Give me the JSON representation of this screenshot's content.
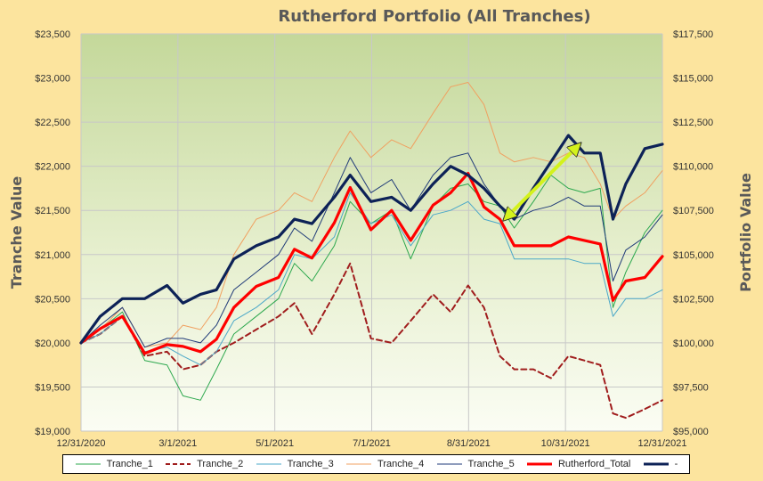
{
  "chart_data": {
    "type": "line",
    "title": "Rutherford Portfolio (All Tranches)",
    "ylabel_left": "Tranche Value",
    "ylabel_right": "Portfolio Value",
    "x_ticks": [
      "12/31/2020",
      "3/1/2021",
      "5/1/2021",
      "7/1/2021",
      "8/31/2021",
      "10/31/2021",
      "12/31/2021"
    ],
    "x_range": [
      "2020-12-31",
      "2021-12-31"
    ],
    "ylim_left": [
      19000,
      23500
    ],
    "ylim_right": [
      95000,
      117500
    ],
    "y_ticks_left": [
      "$19,000",
      "$19,500",
      "$20,000",
      "$20,500",
      "$21,000",
      "$21,500",
      "$22,000",
      "$22,500",
      "$23,000",
      "$23,500"
    ],
    "y_ticks_right": [
      "$95,000",
      "$97,500",
      "$100,000",
      "$102,500",
      "$105,000",
      "$107,500",
      "$110,000",
      "$112,500",
      "$115,000",
      "$117,500"
    ],
    "grid": true,
    "legend_position": "bottom",
    "annotation": {
      "type": "double-arrow",
      "from": [
        "2021-09-23",
        21400
      ],
      "to": [
        "2021-11-09",
        22250
      ],
      "color": "#D4F21C"
    },
    "series": [
      {
        "name": "Tranche_1",
        "axis": "left",
        "color": "#2DA84E",
        "width": 1,
        "dash": "none",
        "x": [
          "2020-12-31",
          "2021-01-12",
          "2021-01-26",
          "2021-02-09",
          "2021-02-23",
          "2021-03-05",
          "2021-03-16",
          "2021-03-26",
          "2021-04-06",
          "2021-04-20",
          "2021-05-04",
          "2021-05-14",
          "2021-05-25",
          "2021-06-08",
          "2021-06-18",
          "2021-07-01",
          "2021-07-14",
          "2021-07-26",
          "2021-08-09",
          "2021-08-20",
          "2021-08-31",
          "2021-09-10",
          "2021-09-20",
          "2021-09-29",
          "2021-10-11",
          "2021-10-22",
          "2021-11-02",
          "2021-11-12",
          "2021-11-22",
          "2021-11-30",
          "2021-12-08",
          "2021-12-20",
          "2021-12-31"
        ],
        "y": [
          20000,
          20150,
          20350,
          19800,
          19750,
          19400,
          19350,
          19700,
          20100,
          20300,
          20500,
          20900,
          20700,
          21100,
          21600,
          21350,
          21500,
          20950,
          21550,
          21750,
          21800,
          21600,
          21550,
          21300,
          21600,
          21900,
          21750,
          21700,
          21750,
          20400,
          20800,
          21250,
          21500
        ]
      },
      {
        "name": "Tranche_2",
        "axis": "left",
        "color": "#A01D1D",
        "width": 2,
        "dash": "6,4",
        "x": [
          "2020-12-31",
          "2021-01-12",
          "2021-01-26",
          "2021-02-09",
          "2021-02-23",
          "2021-03-05",
          "2021-03-16",
          "2021-03-26",
          "2021-04-06",
          "2021-04-20",
          "2021-05-04",
          "2021-05-14",
          "2021-05-25",
          "2021-06-08",
          "2021-06-18",
          "2021-07-01",
          "2021-07-14",
          "2021-07-26",
          "2021-08-09",
          "2021-08-20",
          "2021-08-31",
          "2021-09-10",
          "2021-09-20",
          "2021-09-29",
          "2021-10-11",
          "2021-10-22",
          "2021-11-02",
          "2021-11-12",
          "2021-11-22",
          "2021-11-30",
          "2021-12-08",
          "2021-12-20",
          "2021-12-31"
        ],
        "y": [
          20000,
          20100,
          20300,
          19850,
          19900,
          19700,
          19750,
          19900,
          20000,
          20150,
          20300,
          20450,
          20100,
          20550,
          20900,
          20050,
          20000,
          20250,
          20550,
          20350,
          20650,
          20400,
          19850,
          19700,
          19700,
          19600,
          19850,
          19800,
          19750,
          19200,
          19150,
          19250,
          19350
        ]
      },
      {
        "name": "Tranche_3",
        "axis": "left",
        "color": "#4BA8C8",
        "width": 1,
        "dash": "none",
        "x": [
          "2020-12-31",
          "2021-01-12",
          "2021-01-26",
          "2021-02-09",
          "2021-02-23",
          "2021-03-05",
          "2021-03-16",
          "2021-03-26",
          "2021-04-06",
          "2021-04-20",
          "2021-05-04",
          "2021-05-14",
          "2021-05-25",
          "2021-06-08",
          "2021-06-18",
          "2021-07-01",
          "2021-07-14",
          "2021-07-26",
          "2021-08-09",
          "2021-08-20",
          "2021-08-31",
          "2021-09-10",
          "2021-09-20",
          "2021-09-29",
          "2021-10-11",
          "2021-10-22",
          "2021-11-02",
          "2021-11-12",
          "2021-11-22",
          "2021-11-30",
          "2021-12-08",
          "2021-12-20",
          "2021-12-31"
        ],
        "y": [
          20000,
          20100,
          20300,
          19900,
          19950,
          19850,
          19750,
          19900,
          20250,
          20400,
          20600,
          21000,
          20950,
          21200,
          21700,
          21350,
          21450,
          21100,
          21450,
          21500,
          21600,
          21400,
          21350,
          20950,
          20950,
          20950,
          20950,
          20900,
          20900,
          20300,
          20500,
          20500,
          20600
        ]
      },
      {
        "name": "Tranche_4",
        "axis": "left",
        "color": "#F0A060",
        "width": 1,
        "dash": "none",
        "x": [
          "2020-12-31",
          "2021-01-12",
          "2021-01-26",
          "2021-02-09",
          "2021-02-23",
          "2021-03-05",
          "2021-03-16",
          "2021-03-26",
          "2021-04-06",
          "2021-04-20",
          "2021-05-04",
          "2021-05-14",
          "2021-05-25",
          "2021-06-08",
          "2021-06-18",
          "2021-07-01",
          "2021-07-14",
          "2021-07-26",
          "2021-08-09",
          "2021-08-20",
          "2021-08-31",
          "2021-09-10",
          "2021-09-20",
          "2021-09-29",
          "2021-10-11",
          "2021-10-22",
          "2021-11-02",
          "2021-11-12",
          "2021-11-22",
          "2021-11-30",
          "2021-12-08",
          "2021-12-20",
          "2021-12-31"
        ],
        "y": [
          20000,
          20150,
          20400,
          19950,
          20000,
          20200,
          20150,
          20400,
          21000,
          21400,
          21500,
          21700,
          21600,
          22100,
          22400,
          22100,
          22300,
          22200,
          22600,
          22900,
          22950,
          22700,
          22150,
          22050,
          22100,
          22050,
          22150,
          22100,
          21800,
          21400,
          21550,
          21700,
          21950
        ]
      },
      {
        "name": "Tranche_5",
        "axis": "left",
        "color": "#1F3A78",
        "width": 1,
        "dash": "none",
        "x": [
          "2020-12-31",
          "2021-01-12",
          "2021-01-26",
          "2021-02-09",
          "2021-02-23",
          "2021-03-05",
          "2021-03-16",
          "2021-03-26",
          "2021-04-06",
          "2021-04-20",
          "2021-05-04",
          "2021-05-14",
          "2021-05-25",
          "2021-06-08",
          "2021-06-18",
          "2021-07-01",
          "2021-07-14",
          "2021-07-26",
          "2021-08-09",
          "2021-08-20",
          "2021-08-31",
          "2021-09-10",
          "2021-09-20",
          "2021-09-29",
          "2021-10-11",
          "2021-10-22",
          "2021-11-02",
          "2021-11-12",
          "2021-11-22",
          "2021-11-30",
          "2021-12-08",
          "2021-12-20",
          "2021-12-31"
        ],
        "y": [
          20000,
          20200,
          20400,
          19950,
          20050,
          20050,
          20000,
          20200,
          20600,
          20800,
          21000,
          21300,
          21150,
          21700,
          22100,
          21700,
          21850,
          21500,
          21900,
          22100,
          22150,
          21800,
          21550,
          21400,
          21500,
          21550,
          21650,
          21550,
          21550,
          20700,
          21050,
          21200,
          21450
        ]
      },
      {
        "name": "Rutherford_Total",
        "axis": "right",
        "color": "#FF0000",
        "width": 3.2,
        "dash": "none",
        "x": [
          "2020-12-31",
          "2021-01-12",
          "2021-01-26",
          "2021-02-09",
          "2021-02-23",
          "2021-03-05",
          "2021-03-16",
          "2021-03-26",
          "2021-04-06",
          "2021-04-20",
          "2021-05-04",
          "2021-05-14",
          "2021-05-25",
          "2021-06-08",
          "2021-06-18",
          "2021-07-01",
          "2021-07-14",
          "2021-07-26",
          "2021-08-09",
          "2021-08-20",
          "2021-08-31",
          "2021-09-10",
          "2021-09-20",
          "2021-09-29",
          "2021-10-11",
          "2021-10-22",
          "2021-11-02",
          "2021-11-12",
          "2021-11-22",
          "2021-11-30",
          "2021-12-08",
          "2021-12-20",
          "2021-12-31"
        ],
        "y": [
          100000,
          100800,
          101500,
          99400,
          99900,
          99800,
          99500,
          100200,
          102000,
          103200,
          103700,
          105300,
          104800,
          106800,
          108800,
          106400,
          107500,
          105800,
          107800,
          108500,
          109600,
          107700,
          107000,
          105500,
          105500,
          105500,
          106000,
          105800,
          105600,
          102400,
          103500,
          103700,
          104900
        ]
      },
      {
        "name": "-",
        "axis": "left",
        "color": "#0D2257",
        "width": 3.2,
        "dash": "none",
        "x": [
          "2020-12-31",
          "2021-01-12",
          "2021-01-26",
          "2021-02-09",
          "2021-02-23",
          "2021-03-05",
          "2021-03-16",
          "2021-03-26",
          "2021-04-06",
          "2021-04-20",
          "2021-05-04",
          "2021-05-14",
          "2021-05-25",
          "2021-06-08",
          "2021-06-18",
          "2021-07-01",
          "2021-07-14",
          "2021-07-26",
          "2021-08-09",
          "2021-08-20",
          "2021-08-31",
          "2021-09-10",
          "2021-09-20",
          "2021-09-29",
          "2021-10-11",
          "2021-10-22",
          "2021-11-02",
          "2021-11-12",
          "2021-11-22",
          "2021-11-30",
          "2021-12-08",
          "2021-12-20",
          "2021-12-31"
        ],
        "y": [
          20000,
          20300,
          20500,
          20500,
          20650,
          20450,
          20550,
          20600,
          20950,
          21100,
          21200,
          21400,
          21350,
          21650,
          21900,
          21600,
          21650,
          21500,
          21800,
          22000,
          21900,
          21750,
          21550,
          21400,
          21750,
          22050,
          22350,
          22150,
          22150,
          21400,
          21800,
          22200,
          22250
        ]
      }
    ]
  }
}
